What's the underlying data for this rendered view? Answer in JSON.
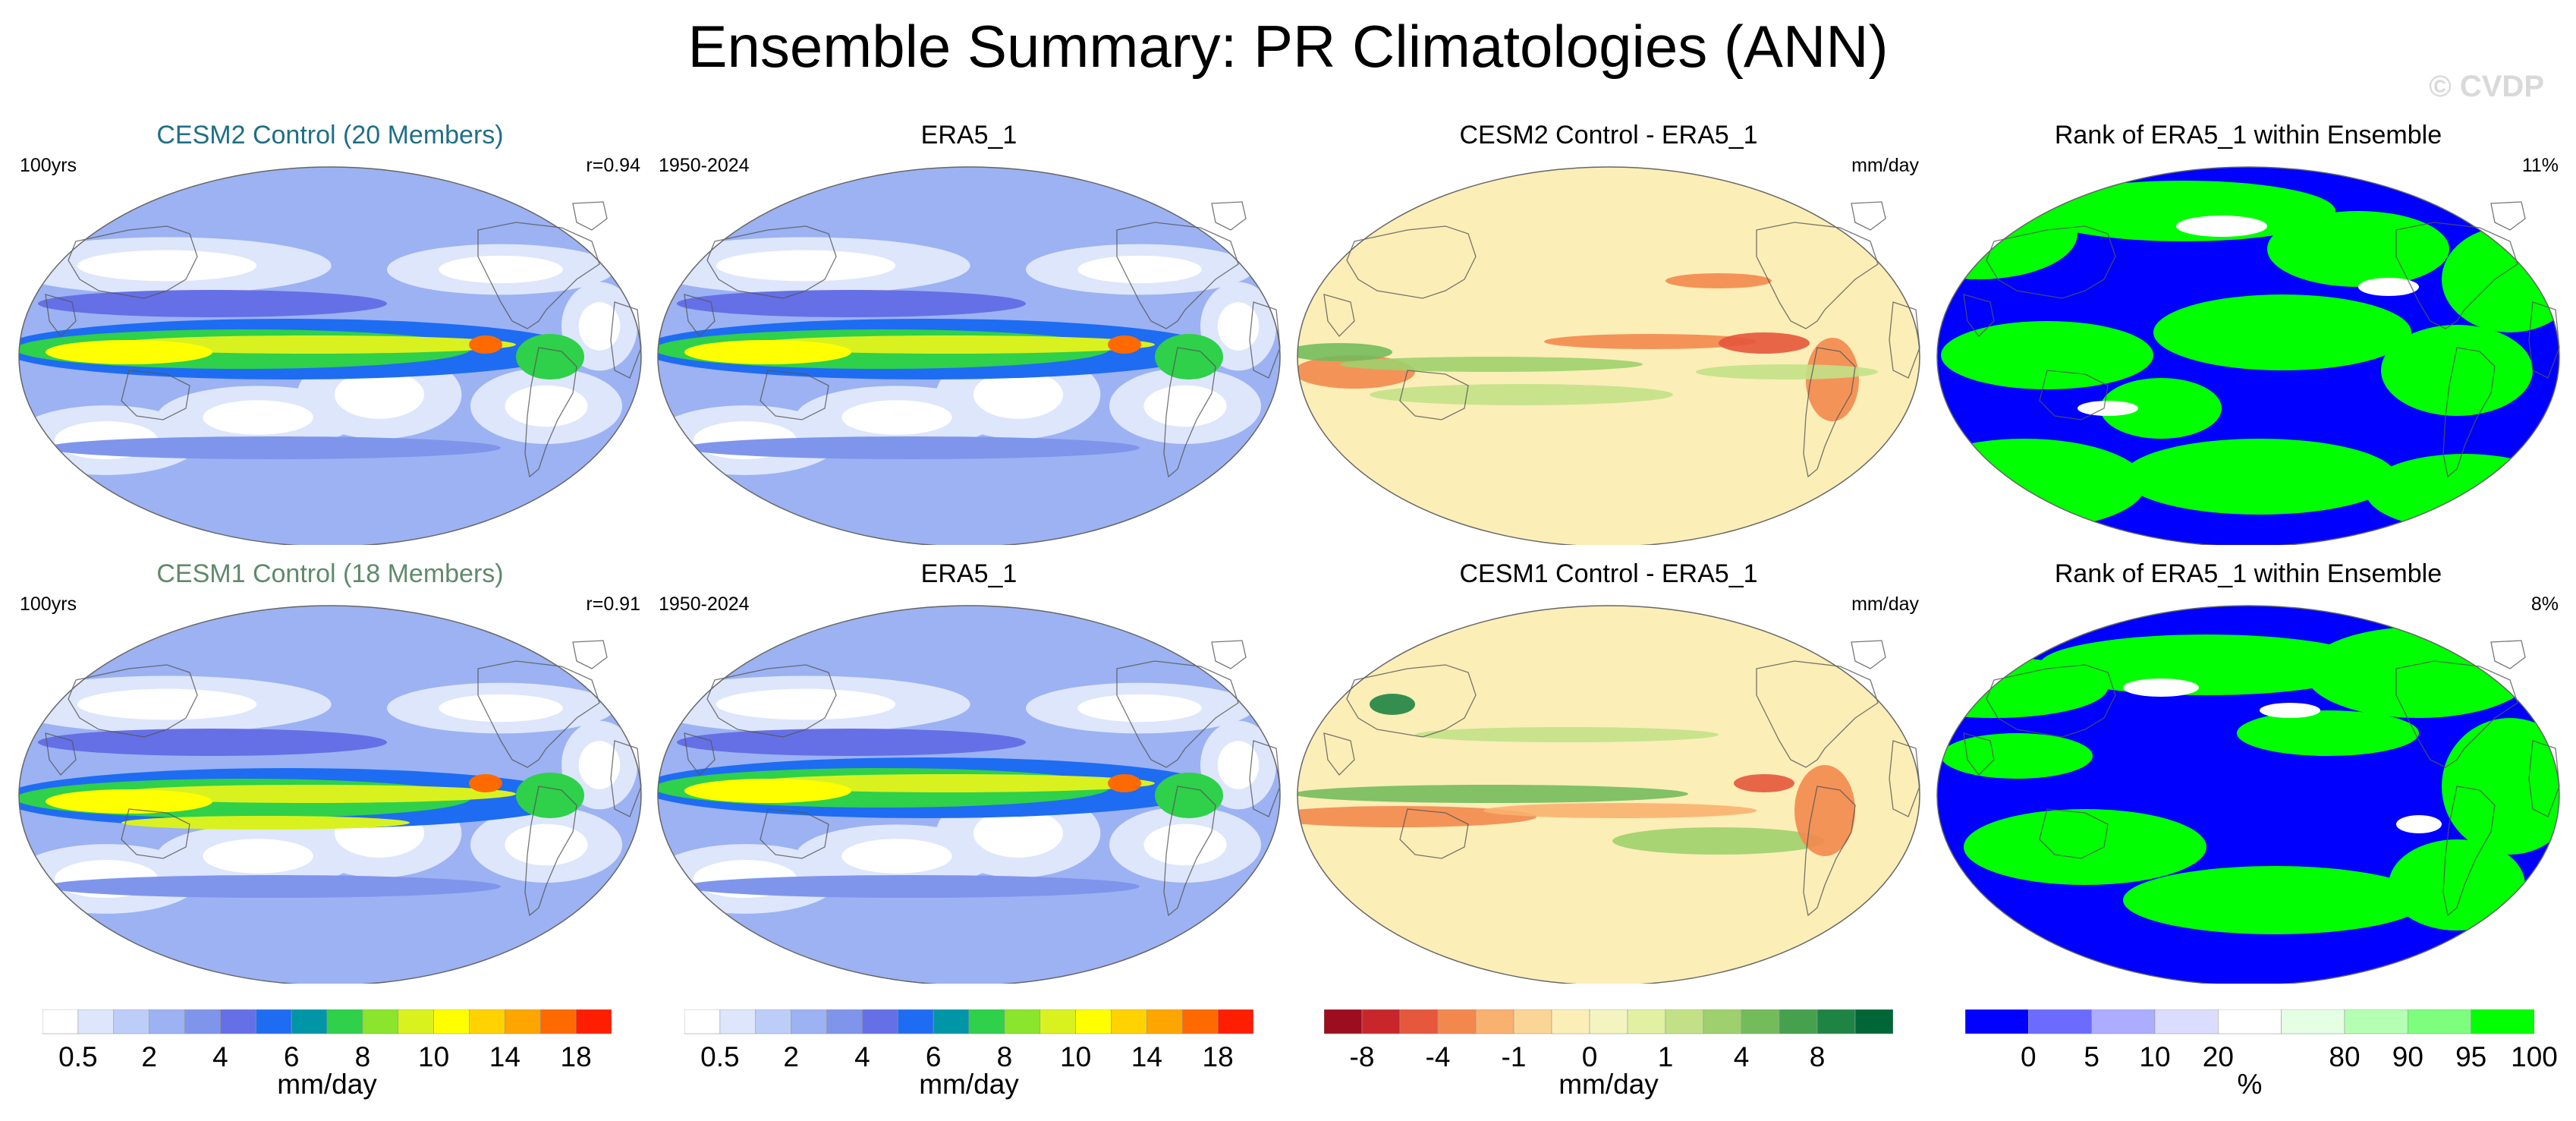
{
  "figure": {
    "title": "Ensemble Summary: PR Climatologies (ANN)",
    "watermark": "© CVDP"
  },
  "colors": {
    "cesm2_title": "#1f6f86",
    "cesm1_title": "#5f8a6a"
  },
  "panels": [
    {
      "id": "r1c1",
      "title": "CESM2 Control (20 Members)",
      "title_color": "#1f6f86",
      "left": "100yrs",
      "right": "r=0.94",
      "kind": "precip",
      "variant": 0
    },
    {
      "id": "r1c2",
      "title": "ERA5_1",
      "title_color": "#000000",
      "left": "1950-2024",
      "right": "",
      "kind": "precip",
      "variant": 1
    },
    {
      "id": "r1c3",
      "title": "CESM2 Control - ERA5_1",
      "title_color": "#000000",
      "left": "",
      "right": "mm/day",
      "kind": "diff",
      "variant": 0
    },
    {
      "id": "r1c4",
      "title": "Rank of ERA5_1 within Ensemble",
      "title_color": "#000000",
      "left": "",
      "right": "11%",
      "kind": "rank",
      "variant": 0
    },
    {
      "id": "r2c1",
      "title": "CESM1 Control (18 Members)",
      "title_color": "#5f8a6a",
      "left": "100yrs",
      "right": "r=0.91",
      "kind": "precip",
      "variant": 2
    },
    {
      "id": "r2c2",
      "title": "ERA5_1",
      "title_color": "#000000",
      "left": "1950-2024",
      "right": "",
      "kind": "precip",
      "variant": 1
    },
    {
      "id": "r2c3",
      "title": "CESM1 Control - ERA5_1",
      "title_color": "#000000",
      "left": "",
      "right": "mm/day",
      "kind": "diff",
      "variant": 1
    },
    {
      "id": "r2c4",
      "title": "Rank of ERA5_1 within Ensemble",
      "title_color": "#000000",
      "left": "",
      "right": "8%",
      "kind": "rank",
      "variant": 1
    }
  ],
  "chart_data": [
    {
      "type": "heatmap",
      "name": "precip-colorbar",
      "unit": "mm/day",
      "colors": [
        "#ffffff",
        "#dde6fb",
        "#bccdf7",
        "#9cb2f2",
        "#7f95ec",
        "#6570e6",
        "#1e6cf2",
        "#0096a8",
        "#2fd04a",
        "#8be52c",
        "#d9f21f",
        "#ffff00",
        "#ffd200",
        "#ffa500",
        "#ff6a00",
        "#ff1e00"
      ],
      "tick_labels": [
        "0.5",
        "2",
        "4",
        "6",
        "8",
        "10",
        "14",
        "18"
      ]
    },
    {
      "type": "heatmap",
      "name": "diff-colorbar",
      "unit": "mm/day",
      "colors": [
        "#9b0d1f",
        "#c8262b",
        "#e6573c",
        "#f3884e",
        "#f9b170",
        "#fad595",
        "#fbeeb7",
        "#f4f4c0",
        "#e1f0a3",
        "#c2e187",
        "#9ed06d",
        "#74bb5c",
        "#46a14e",
        "#1e8444",
        "#006635"
      ],
      "tick_labels": [
        "-8",
        "-4",
        "-1",
        "0",
        "1",
        "4",
        "8"
      ]
    },
    {
      "type": "heatmap",
      "name": "rank-colorbar",
      "unit": "%",
      "colors": [
        "#0000ff",
        "#6b6bff",
        "#adadff",
        "#dcdcff",
        "#ffffff",
        "#e4ffe4",
        "#b5ffb5",
        "#7dff7d",
        "#00ff00"
      ],
      "tick_labels": [
        "0",
        "5",
        "10",
        "20",
        "80",
        "90",
        "95",
        "100"
      ]
    }
  ],
  "colorbars": [
    {
      "unit": "mm/day",
      "ticks": [
        "0.5",
        "2",
        "4",
        "6",
        "8",
        "10",
        "14",
        "18"
      ]
    },
    {
      "unit": "mm/day",
      "ticks": [
        "0.5",
        "2",
        "4",
        "6",
        "8",
        "10",
        "14",
        "18"
      ]
    },
    {
      "unit": "mm/day",
      "ticks": [
        "-8",
        "-4",
        "-1",
        "0",
        "1",
        "4",
        "8"
      ]
    },
    {
      "unit": "%",
      "ticks": [
        "0",
        "5",
        "10",
        "20",
        "80",
        "90",
        "95",
        "100"
      ]
    }
  ]
}
